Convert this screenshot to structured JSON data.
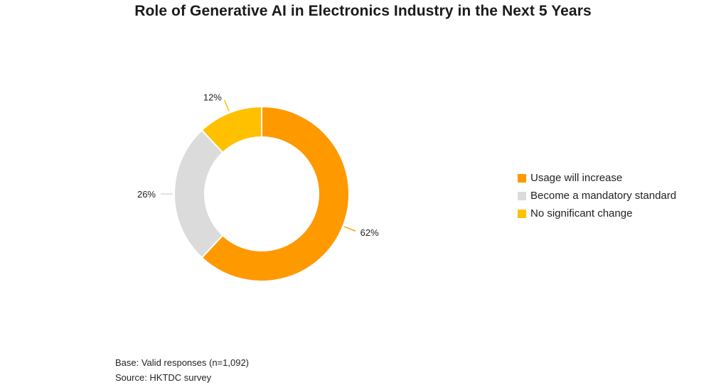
{
  "chart_data": {
    "type": "pie",
    "variant": "donut",
    "title": "Role of Generative AI in Electronics Industry in the Next 5 Years",
    "slices": [
      {
        "name": "Usage will increase",
        "value": 62,
        "label": "62%",
        "color": "#FF9900"
      },
      {
        "name": "Become a mandatory standard",
        "value": 26,
        "label": "26%",
        "color": "#DBDBDB"
      },
      {
        "name": "No significant change",
        "value": 12,
        "label": "12%",
        "color": "#FFC000"
      }
    ],
    "legend_position": "right"
  },
  "footnotes": {
    "base": "Base: Valid responses (n=1,092)",
    "source": "Source: HKTDC survey"
  }
}
